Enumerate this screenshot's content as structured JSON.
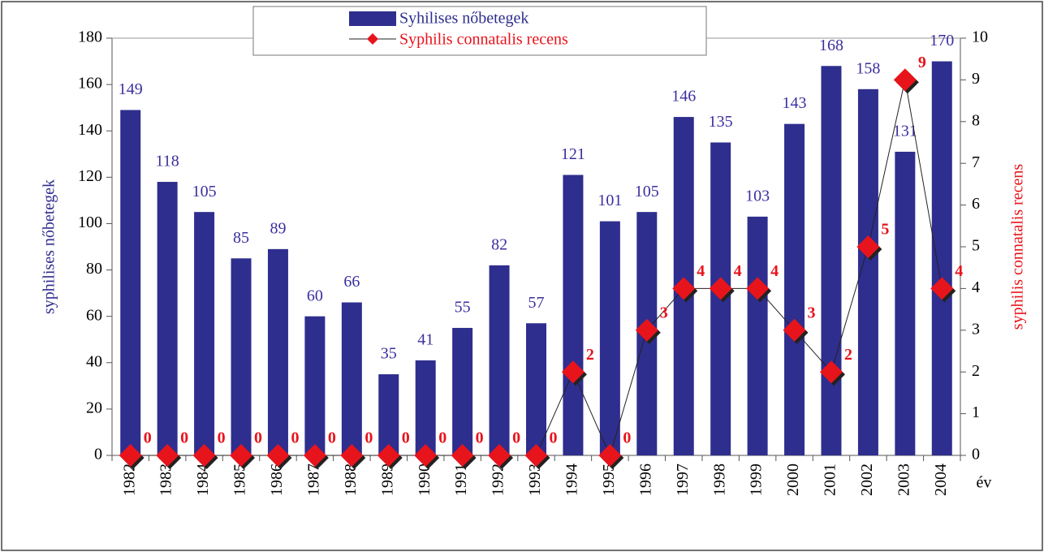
{
  "chart_data": {
    "type": "bar",
    "categories": [
      "1982",
      "1983",
      "1984",
      "1985",
      "1986",
      "1987",
      "1988",
      "1989",
      "1990",
      "1991",
      "1992",
      "1993",
      "1994",
      "1995",
      "1996",
      "1997",
      "1998",
      "1999",
      "2000",
      "2001",
      "2002",
      "2003",
      "2004"
    ],
    "series": [
      {
        "name": "Syhilises nőbetegek",
        "color": "#2e2e8e",
        "type": "bar",
        "values": [
          149,
          118,
          105,
          85,
          89,
          60,
          66,
          35,
          41,
          55,
          82,
          57,
          121,
          101,
          105,
          146,
          135,
          103,
          143,
          168,
          158,
          131,
          170
        ]
      },
      {
        "name": "Syphilis connatalis recens",
        "color": "#e8141c",
        "type": "line",
        "axis": "y2",
        "values": [
          0,
          0,
          0,
          0,
          0,
          0,
          0,
          0,
          0,
          0,
          0,
          0,
          2,
          0,
          3,
          4,
          4,
          4,
          3,
          2,
          5,
          9,
          4
        ]
      }
    ],
    "xlabel": "év",
    "ylabel": "syphilises nőbetegek",
    "y2label": "syphilis connatalis recens",
    "ylim": [
      0,
      180
    ],
    "yticks": [
      0,
      20,
      40,
      60,
      80,
      100,
      120,
      140,
      160,
      180
    ],
    "y2lim": [
      0,
      10
    ],
    "y2ticks": [
      0,
      1,
      2,
      3,
      4,
      5,
      6,
      7,
      8,
      9,
      10
    ]
  }
}
